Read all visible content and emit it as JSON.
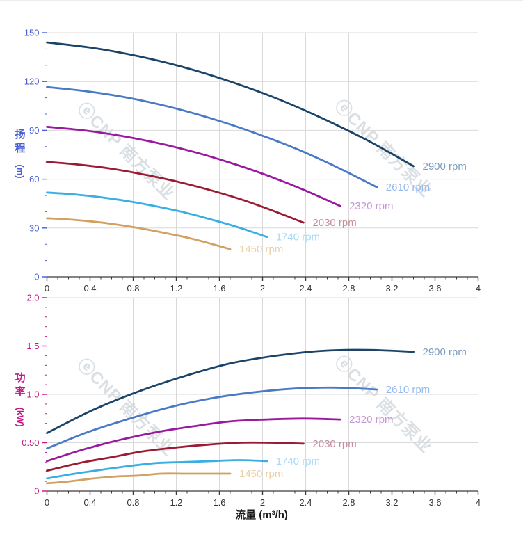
{
  "background": "#ffffff",
  "grid_color": "#d9d9d9",
  "y_axis_line_color": "#c8c8c8",
  "watermark": {
    "text": "ⓔCNP 南方泵业",
    "color": "rgba(168,178,190,0.42)"
  },
  "x_axis": {
    "title": "流量 (m³/h)",
    "tick_values": [
      0,
      0.4,
      0.8,
      1.2,
      1.6,
      2,
      2.4,
      2.8,
      3.2,
      3.6,
      4
    ],
    "tick_labels": [
      "0",
      "0.4",
      "0.8",
      "1.2",
      "1.6",
      "2",
      "2.4",
      "2.8",
      "3.2",
      "3.6",
      "4"
    ],
    "minor_step": 0.1,
    "xlim": [
      0,
      4
    ],
    "label_color": "#333333",
    "axis_color": "#3a3a3a",
    "title_color": "#1a1a1a"
  },
  "chart_data": [
    {
      "type": "line",
      "name": "head-vs-flow",
      "ylabel_chars": "扬程",
      "ylabel_unit": "(m)",
      "xlabel": "流量 (m³/h)",
      "axis_color": "#4a5ed4",
      "ylim": [
        0,
        150
      ],
      "xlim": [
        0,
        4
      ],
      "y_ticks": [
        {
          "v": 0,
          "label": "0"
        },
        {
          "v": 30,
          "label": "30"
        },
        {
          "v": 60,
          "label": "60"
        },
        {
          "v": 90,
          "label": "90"
        },
        {
          "v": 120,
          "label": "120"
        },
        {
          "v": 150,
          "label": "150"
        }
      ],
      "y_minor_step": 10,
      "legend_position": "curve-end-right",
      "grid": true,
      "series": [
        {
          "name": "2900 rpm",
          "color": "#1b4468",
          "label_color": "#7b9dc1",
          "points": [
            [
              0,
              144
            ],
            [
              0.43,
              140.6
            ],
            [
              0.85,
              135.5
            ],
            [
              1.28,
              128.6
            ],
            [
              1.7,
              120
            ],
            [
              2.13,
              109.6
            ],
            [
              2.55,
              97.5
            ],
            [
              2.98,
              83.6
            ],
            [
              3.4,
              68
            ]
          ]
        },
        {
          "name": "2610 rpm",
          "color": "#4a79c6",
          "label_color": "#96b9ec",
          "points": [
            [
              0,
              116.6
            ],
            [
              0.38,
              113.9
            ],
            [
              0.77,
              109.8
            ],
            [
              1.15,
              104.2
            ],
            [
              1.53,
              97.2
            ],
            [
              1.91,
              88.8
            ],
            [
              2.3,
              79
            ],
            [
              2.68,
              67.7
            ],
            [
              3.06,
              55.1
            ]
          ]
        },
        {
          "name": "2320 rpm",
          "color": "#99199f",
          "label_color": "#c795d3",
          "points": [
            [
              0,
              92.2
            ],
            [
              0.34,
              90
            ],
            [
              0.68,
              86.7
            ],
            [
              1.02,
              82.3
            ],
            [
              1.36,
              76.8
            ],
            [
              1.7,
              70.1
            ],
            [
              2.04,
              62.4
            ],
            [
              2.38,
              53.5
            ],
            [
              2.72,
              43.5
            ]
          ]
        },
        {
          "name": "2030 rpm",
          "color": "#9c1b34",
          "label_color": "#c68d9e",
          "points": [
            [
              0,
              70.6
            ],
            [
              0.3,
              68.9
            ],
            [
              0.6,
              66.4
            ],
            [
              0.89,
              63
            ],
            [
              1.19,
              58.8
            ],
            [
              1.49,
              53.7
            ],
            [
              1.79,
              47.8
            ],
            [
              2.08,
              41
            ],
            [
              2.38,
              33.3
            ]
          ]
        },
        {
          "name": "1740 rpm",
          "color": "#3aaee2",
          "label_color": "#a6daf4",
          "points": [
            [
              0,
              51.8
            ],
            [
              0.26,
              50.6
            ],
            [
              0.51,
              48.8
            ],
            [
              0.77,
              46.3
            ],
            [
              1.02,
              43.2
            ],
            [
              1.28,
              39.5
            ],
            [
              1.53,
              35.1
            ],
            [
              1.79,
              30.1
            ],
            [
              2.04,
              24.5
            ]
          ]
        },
        {
          "name": "1450 rpm",
          "color": "#d1a164",
          "label_color": "#e9d0a8",
          "points": [
            [
              0,
              36
            ],
            [
              0.21,
              35.2
            ],
            [
              0.43,
              33.9
            ],
            [
              0.64,
              32.2
            ],
            [
              0.85,
              30
            ],
            [
              1.06,
              27.4
            ],
            [
              1.28,
              24.4
            ],
            [
              1.49,
              20.9
            ],
            [
              1.7,
              17
            ]
          ]
        }
      ]
    },
    {
      "type": "line",
      "name": "power-vs-flow",
      "ylabel_chars": "功率",
      "ylabel_unit": "(kW)",
      "xlabel": "流量 (m³/h)",
      "axis_color": "#c31680",
      "ylim": [
        0,
        2
      ],
      "xlim": [
        0,
        4
      ],
      "y_ticks": [
        {
          "v": 0,
          "label": "0"
        },
        {
          "v": 0.5,
          "label": "0.50"
        },
        {
          "v": 1,
          "label": "1.0"
        },
        {
          "v": 1.5,
          "label": "1.5"
        },
        {
          "v": 2,
          "label": "2.0"
        }
      ],
      "y_minor_step": 0.1,
      "legend_position": "curve-end-right",
      "grid": true,
      "series": [
        {
          "name": "2900 rpm",
          "color": "#1b4468",
          "label_color": "#7b9dc1",
          "points": [
            [
              0,
              0.6
            ],
            [
              0.43,
              0.84
            ],
            [
              0.85,
              1.03
            ],
            [
              1.28,
              1.19
            ],
            [
              1.7,
              1.32
            ],
            [
              2.13,
              1.4
            ],
            [
              2.55,
              1.45
            ],
            [
              2.98,
              1.46
            ],
            [
              3.4,
              1.44
            ]
          ]
        },
        {
          "name": "2610 rpm",
          "color": "#4a79c6",
          "label_color": "#96b9ec",
          "points": [
            [
              0,
              0.44
            ],
            [
              0.38,
              0.61
            ],
            [
              0.77,
              0.75
            ],
            [
              1.15,
              0.87
            ],
            [
              1.53,
              0.96
            ],
            [
              1.91,
              1.02
            ],
            [
              2.3,
              1.06
            ],
            [
              2.68,
              1.07
            ],
            [
              3.06,
              1.05
            ]
          ]
        },
        {
          "name": "2320 rpm",
          "color": "#99199f",
          "label_color": "#c795d3",
          "points": [
            [
              0,
              0.31
            ],
            [
              0.34,
              0.43
            ],
            [
              0.68,
              0.53
            ],
            [
              1.02,
              0.61
            ],
            [
              1.36,
              0.67
            ],
            [
              1.7,
              0.72
            ],
            [
              2.04,
              0.74
            ],
            [
              2.38,
              0.75
            ],
            [
              2.72,
              0.74
            ]
          ]
        },
        {
          "name": "2030 rpm",
          "color": "#9c1b34",
          "label_color": "#c68d9e",
          "points": [
            [
              0,
              0.21
            ],
            [
              0.3,
              0.29
            ],
            [
              0.6,
              0.35
            ],
            [
              0.89,
              0.41
            ],
            [
              1.19,
              0.45
            ],
            [
              1.49,
              0.48
            ],
            [
              1.79,
              0.5
            ],
            [
              2.08,
              0.5
            ],
            [
              2.38,
              0.49
            ]
          ]
        },
        {
          "name": "1740 rpm",
          "color": "#3aaee2",
          "label_color": "#a6daf4",
          "points": [
            [
              0,
              0.13
            ],
            [
              0.26,
              0.18
            ],
            [
              0.51,
              0.22
            ],
            [
              0.77,
              0.26
            ],
            [
              1.02,
              0.29
            ],
            [
              1.28,
              0.3
            ],
            [
              1.53,
              0.31
            ],
            [
              1.79,
              0.32
            ],
            [
              2.04,
              0.31
            ]
          ]
        },
        {
          "name": "1450 rpm",
          "color": "#d1a164",
          "label_color": "#e9d0a8",
          "points": [
            [
              0,
              0.08
            ],
            [
              0.21,
              0.1
            ],
            [
              0.43,
              0.13
            ],
            [
              0.64,
              0.15
            ],
            [
              0.85,
              0.16
            ],
            [
              1.06,
              0.18
            ],
            [
              1.28,
              0.18
            ],
            [
              1.49,
              0.18
            ],
            [
              1.7,
              0.18
            ]
          ]
        }
      ]
    }
  ]
}
